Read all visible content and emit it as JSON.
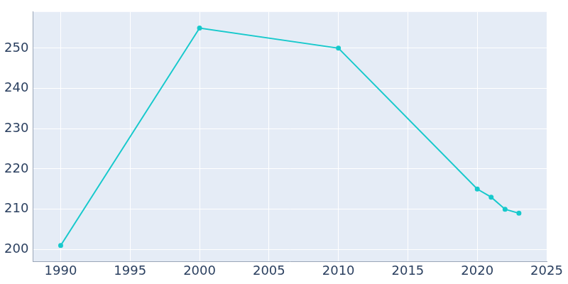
{
  "chart_data": {
    "type": "line",
    "x": [
      1990,
      2000,
      2010,
      2020,
      2021,
      2022,
      2023
    ],
    "values": [
      201,
      255,
      250,
      215,
      213,
      210,
      209
    ],
    "color": "#17c9cc",
    "marker": "circle",
    "xlim": [
      1988,
      2025
    ],
    "xticks": [
      1990,
      1995,
      2000,
      2005,
      2010,
      2015,
      2020,
      2025
    ],
    "ylim": [
      197,
      259
    ],
    "yticks": [
      200,
      210,
      220,
      230,
      240,
      250
    ],
    "grid": true
  }
}
